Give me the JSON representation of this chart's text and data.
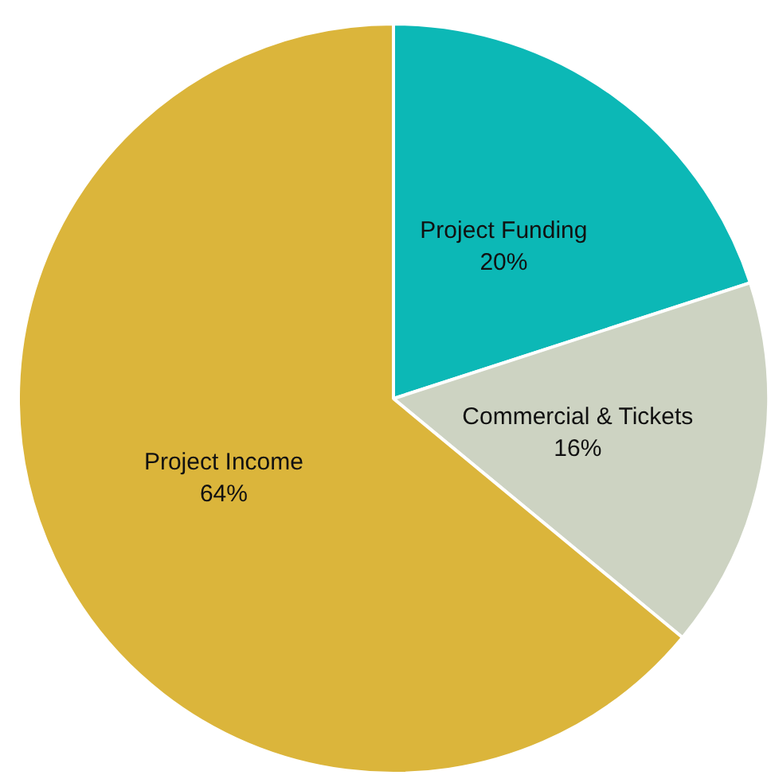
{
  "chart_data": {
    "type": "pie",
    "categories": [
      "Project Funding",
      "Commercial & Tickets",
      "Project Income"
    ],
    "values": [
      20,
      16,
      64
    ],
    "colors": [
      "#0cb8b6",
      "#cdd3c2",
      "#dbb53b"
    ],
    "value_labels": [
      "20%",
      "16%",
      "64%"
    ],
    "legend": false
  }
}
